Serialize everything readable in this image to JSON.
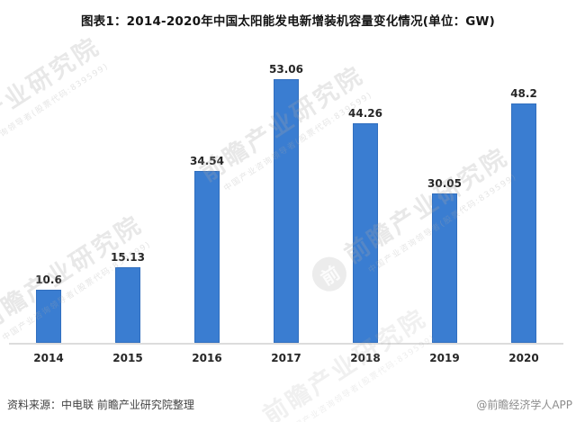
{
  "title": "图表1：2014-2020年中国太阳能发电新增装机容量变化情况(单位：GW)",
  "chart_data": {
    "type": "bar",
    "categories": [
      "2014",
      "2015",
      "2016",
      "2017",
      "2018",
      "2019",
      "2020"
    ],
    "values": [
      10.6,
      15.13,
      34.54,
      53.06,
      44.26,
      30.05,
      48.2
    ],
    "title": "图表1：2014-2020年中国太阳能发电新增装机容量变化情况(单位：GW)",
    "xlabel": "",
    "ylabel": "",
    "unit": "GW",
    "ylim": [
      0,
      58
    ],
    "grid": false,
    "legend": false,
    "value_labels_shown": true,
    "bar_color": "#3A7DD1"
  },
  "footer": {
    "source": "资料来源：中电联 前瞻产业研究院整理",
    "credit": "@前瞻经济学人APP"
  },
  "watermark": {
    "text": "前瞻产业研究院",
    "subtext": "中国产业咨询领导者(股票代码:839599)",
    "logo_glyph": "前"
  },
  "colors": {
    "bar": "#3A7DD1",
    "axis_line": "#DCDCDC",
    "label_text": "#262626",
    "source_text": "#404040",
    "credit_text": "#8C8C8C"
  }
}
